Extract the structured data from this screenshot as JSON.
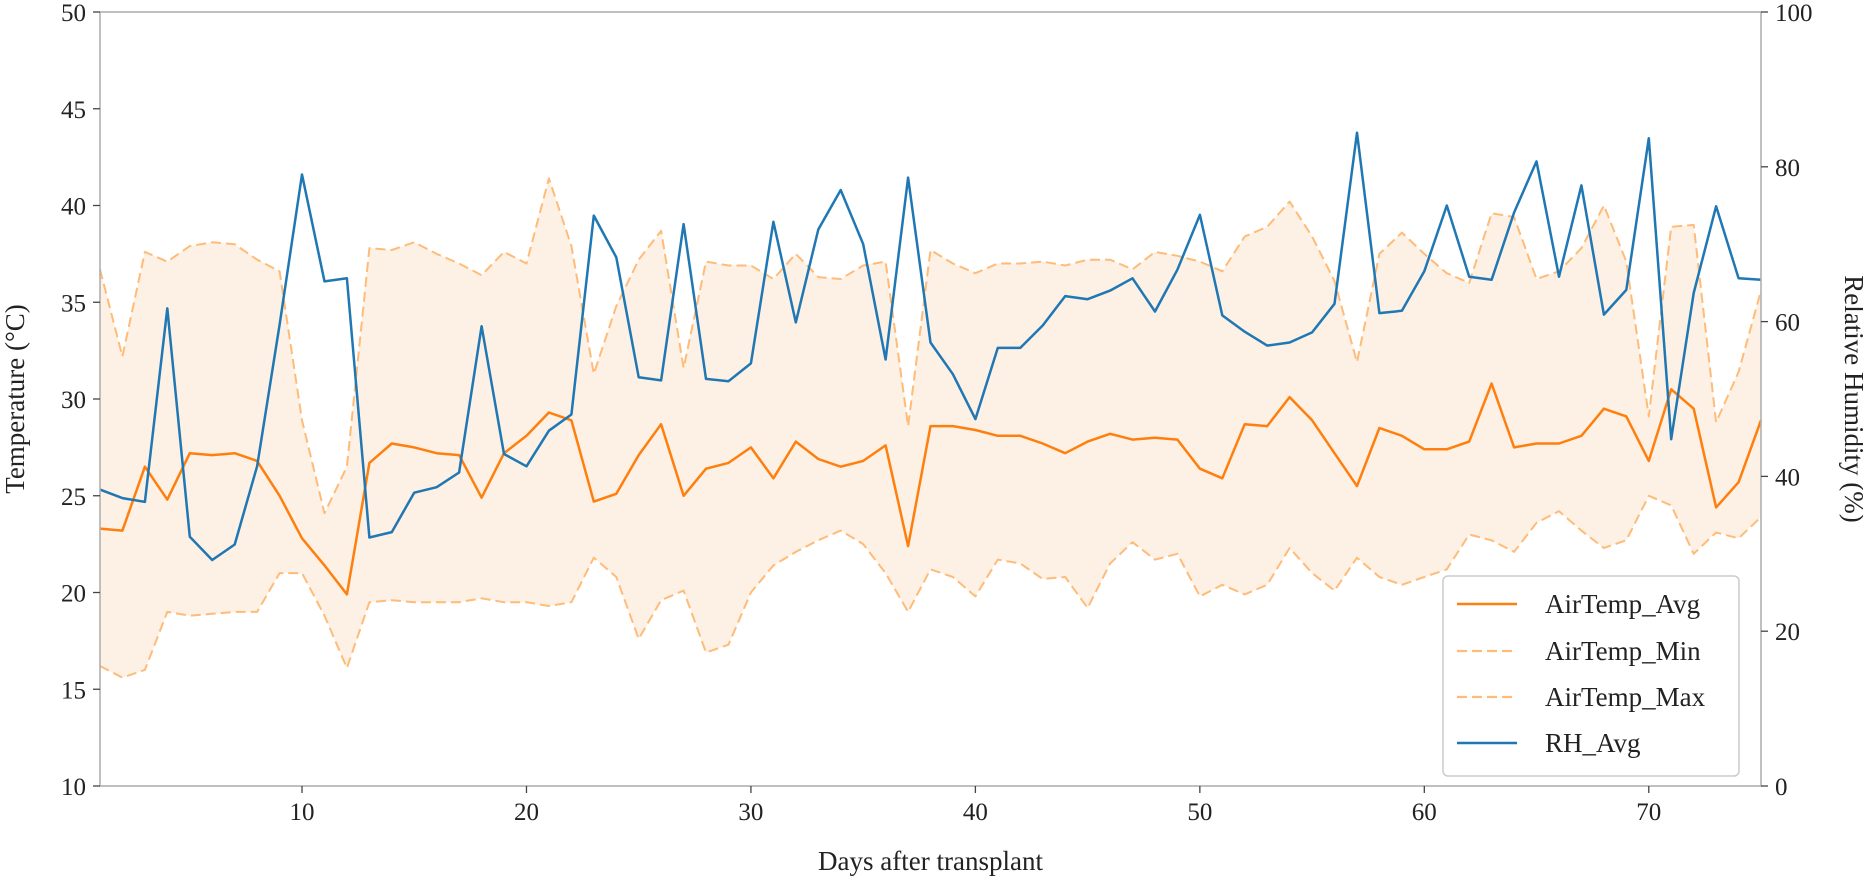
{
  "chart_data": {
    "type": "line",
    "xlabel": "Days after transplant",
    "ylabel_left": "Temperature (°C)",
    "ylabel_right": "Relative Humidity (%)",
    "xlim": [
      1,
      75
    ],
    "ylim_left": [
      10,
      50
    ],
    "ylim_right": [
      0,
      100
    ],
    "xticks": [
      10,
      20,
      30,
      40,
      50,
      60,
      70
    ],
    "yticks_left": [
      10,
      15,
      20,
      25,
      30,
      35,
      40,
      45,
      50
    ],
    "yticks_right": [
      0,
      20,
      40,
      60,
      80,
      100
    ],
    "grid": false,
    "legend_position": "bottom-right",
    "fill_between": {
      "lower": "AirTemp_Min",
      "upper": "AirTemp_Max",
      "color": "#fdf0e4"
    },
    "series": [
      {
        "name": "AirTemp_Avg",
        "axis": "left",
        "color": "#ff7f0e",
        "style": "solid",
        "values": [
          23.3,
          23.2,
          26.5,
          24.8,
          27.2,
          27.1,
          27.2,
          26.8,
          25.0,
          22.8,
          21.4,
          19.9,
          26.7,
          27.7,
          27.5,
          27.2,
          27.1,
          24.9,
          27.2,
          28.1,
          29.3,
          28.9,
          24.7,
          25.1,
          27.1,
          28.7,
          25.0,
          26.4,
          26.7,
          27.5,
          25.9,
          27.8,
          26.9,
          26.5,
          26.8,
          27.6,
          22.4,
          28.6,
          28.6,
          28.4,
          28.1,
          28.1,
          27.7,
          27.2,
          27.8,
          28.2,
          27.9,
          28.0,
          27.9,
          26.4,
          25.9,
          28.7,
          28.6,
          30.1,
          28.9,
          27.2,
          25.5,
          28.5,
          28.1,
          27.4,
          27.4,
          27.8,
          30.8,
          27.5,
          27.7,
          27.7,
          28.1,
          29.5,
          29.1,
          26.8,
          30.5,
          29.5,
          24.4,
          25.7,
          28.9
        ]
      },
      {
        "name": "AirTemp_Min",
        "axis": "left",
        "color": "#ffbb78",
        "style": "dashed",
        "values": [
          16.2,
          15.6,
          16.0,
          19.0,
          18.8,
          18.9,
          19.0,
          19.0,
          21.0,
          21.0,
          18.8,
          16.1,
          19.5,
          19.6,
          19.5,
          19.5,
          19.5,
          19.7,
          19.5,
          19.5,
          19.3,
          19.5,
          21.8,
          20.8,
          17.6,
          19.6,
          20.1,
          16.9,
          17.3,
          20.0,
          21.4,
          22.1,
          22.7,
          23.2,
          22.5,
          21.0,
          19.0,
          21.2,
          20.8,
          19.8,
          21.7,
          21.5,
          20.7,
          20.8,
          19.2,
          21.5,
          22.6,
          21.7,
          22.0,
          19.8,
          20.4,
          19.9,
          20.4,
          22.3,
          21.0,
          20.1,
          21.8,
          20.8,
          20.4,
          20.8,
          21.2,
          23.0,
          22.7,
          22.1,
          23.6,
          24.2,
          23.2,
          22.3,
          22.7,
          25.0,
          24.5,
          22.0,
          23.1,
          22.8,
          23.9
        ]
      },
      {
        "name": "AirTemp_Max",
        "axis": "left",
        "color": "#ffbb78",
        "style": "dashed",
        "values": [
          36.7,
          32.2,
          37.6,
          37.1,
          37.9,
          38.1,
          38.0,
          37.2,
          36.6,
          28.9,
          24.1,
          26.5,
          37.8,
          37.7,
          38.1,
          37.5,
          37.0,
          36.4,
          37.6,
          37.0,
          41.4,
          37.9,
          31.3,
          34.8,
          37.2,
          38.7,
          31.6,
          37.1,
          36.9,
          36.9,
          36.2,
          37.5,
          36.3,
          36.2,
          36.9,
          37.1,
          28.6,
          37.7,
          37.0,
          36.5,
          37.0,
          37.0,
          37.1,
          36.9,
          37.2,
          37.2,
          36.7,
          37.6,
          37.4,
          37.1,
          36.6,
          38.4,
          38.9,
          40.2,
          38.4,
          36.1,
          31.9,
          37.5,
          38.6,
          37.5,
          36.5,
          36.0,
          39.6,
          39.4,
          36.2,
          36.6,
          37.8,
          40.0,
          37.1,
          29.1,
          38.9,
          39.0,
          28.8,
          31.4,
          35.6
        ]
      },
      {
        "name": "RH_Avg",
        "axis": "right",
        "color": "#1f77b4",
        "style": "solid",
        "values": [
          38.3,
          37.2,
          36.7,
          61.7,
          32.2,
          29.2,
          31.2,
          41.3,
          59.6,
          79.0,
          65.2,
          65.6,
          32.1,
          32.8,
          37.9,
          38.6,
          40.5,
          59.4,
          42.9,
          41.3,
          45.9,
          48.0,
          73.7,
          68.3,
          52.8,
          52.4,
          72.6,
          52.6,
          52.3,
          54.6,
          72.9,
          59.9,
          71.9,
          77.0,
          70.0,
          55.1,
          78.6,
          57.3,
          53.2,
          47.4,
          56.6,
          56.6,
          59.5,
          63.3,
          62.9,
          64.0,
          65.6,
          61.3,
          66.7,
          73.8,
          60.8,
          58.7,
          56.9,
          57.3,
          58.6,
          62.3,
          84.4,
          61.1,
          61.4,
          66.5,
          75.0,
          65.8,
          65.4,
          74.1,
          80.7,
          65.8,
          77.6,
          60.9,
          64.1,
          83.7,
          44.8,
          63.7,
          74.9,
          65.6,
          65.4
        ]
      }
    ]
  }
}
